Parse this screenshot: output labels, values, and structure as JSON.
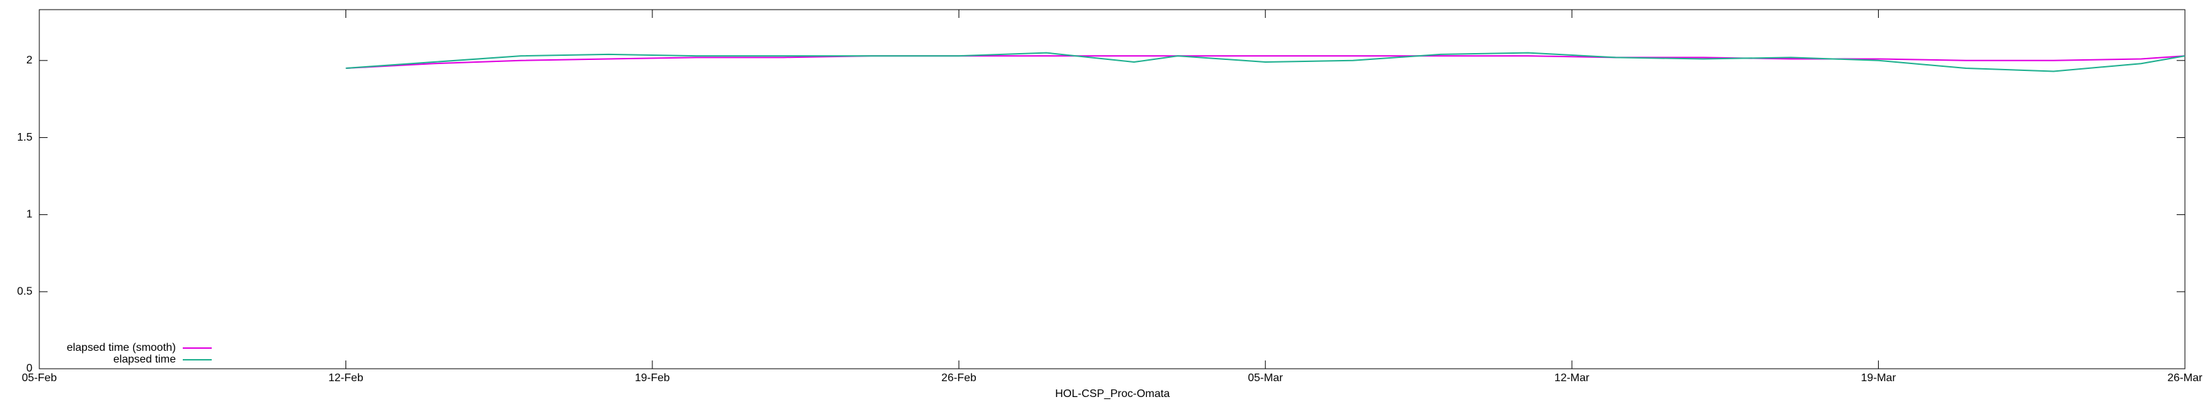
{
  "chart_data": {
    "type": "line",
    "xlabel": "HOL-CSP_Proc-Omata",
    "x": [
      "12-Feb",
      "14-Feb",
      "16-Feb",
      "18-Feb",
      "20-Feb",
      "22-Feb",
      "24-Feb",
      "26-Feb",
      "28-Feb",
      "02-Mar",
      "03-Mar",
      "05-Mar",
      "07-Mar",
      "09-Mar",
      "11-Mar",
      "13-Mar",
      "15-Mar",
      "17-Mar",
      "19-Mar",
      "21-Mar",
      "23-Mar",
      "25-Mar",
      "26-Mar"
    ],
    "series": [
      {
        "name": "elapsed time (smooth)",
        "color": "#e000e0",
        "values": [
          1.95,
          1.98,
          2.0,
          2.01,
          2.02,
          2.02,
          2.03,
          2.03,
          2.03,
          2.03,
          2.03,
          2.03,
          2.03,
          2.03,
          2.03,
          2.02,
          2.02,
          2.01,
          2.01,
          2.0,
          2.0,
          2.01,
          2.03
        ]
      },
      {
        "name": "elapsed time",
        "color": "#20b090",
        "values": [
          1.95,
          1.99,
          2.03,
          2.04,
          2.03,
          2.03,
          2.03,
          2.03,
          2.05,
          1.99,
          2.03,
          1.99,
          2.0,
          2.04,
          2.05,
          2.02,
          2.01,
          2.02,
          2.0,
          1.95,
          1.93,
          1.98,
          2.03
        ]
      }
    ],
    "xlim": [
      "05-Feb",
      "26-Mar"
    ],
    "xticks": [
      "05-Feb",
      "12-Feb",
      "19-Feb",
      "26-Feb",
      "05-Mar",
      "12-Mar",
      "19-Mar",
      "26-Mar"
    ],
    "ylim": [
      0,
      2.33
    ],
    "yticks": [
      0,
      0.5,
      1,
      1.5,
      2
    ],
    "legend": "lower-left"
  }
}
